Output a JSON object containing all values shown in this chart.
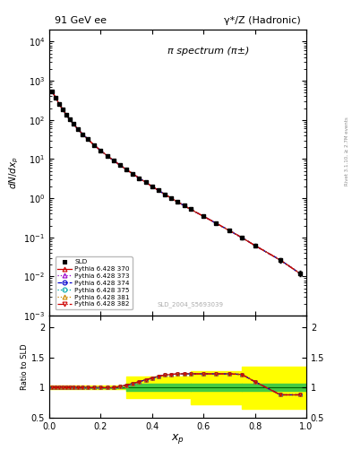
{
  "title_left": "91 GeV ee",
  "title_right": "γ*/Z (Hadronic)",
  "plot_title": "π spectrum (π±)",
  "watermark": "SLD_2004_S5693039",
  "right_label": "Rivet 3.1.10, ≥ 2.7M events",
  "xlabel": "x_{p}",
  "ylabel_top": "dN/dx_{p}",
  "ylabel_bottom": "Ratio to SLD",
  "xp": [
    0.012,
    0.025,
    0.038,
    0.052,
    0.065,
    0.08,
    0.095,
    0.11,
    0.13,
    0.15,
    0.175,
    0.2,
    0.225,
    0.25,
    0.275,
    0.3,
    0.325,
    0.35,
    0.375,
    0.4,
    0.425,
    0.45,
    0.475,
    0.5,
    0.525,
    0.55,
    0.6,
    0.65,
    0.7,
    0.75,
    0.8,
    0.9,
    0.975
  ],
  "sld_y": [
    520,
    370,
    255,
    186,
    138,
    103,
    78,
    59,
    43,
    32,
    22.5,
    16.5,
    12.2,
    9.2,
    7.0,
    5.4,
    4.2,
    3.25,
    2.55,
    2.0,
    1.58,
    1.25,
    1.0,
    0.8,
    0.645,
    0.52,
    0.345,
    0.228,
    0.15,
    0.098,
    0.062,
    0.026,
    0.012
  ],
  "sld_yerr": [
    18,
    13,
    9,
    7,
    5.5,
    4,
    3,
    2.5,
    1.8,
    1.3,
    0.9,
    0.65,
    0.48,
    0.36,
    0.28,
    0.21,
    0.17,
    0.13,
    0.1,
    0.08,
    0.065,
    0.052,
    0.042,
    0.034,
    0.028,
    0.023,
    0.016,
    0.012,
    0.009,
    0.007,
    0.005,
    0.003,
    0.002
  ],
  "ratio_xp": [
    0.012,
    0.025,
    0.038,
    0.052,
    0.065,
    0.08,
    0.095,
    0.11,
    0.13,
    0.15,
    0.175,
    0.2,
    0.225,
    0.25,
    0.275,
    0.3,
    0.325,
    0.35,
    0.375,
    0.4,
    0.425,
    0.45,
    0.475,
    0.5,
    0.525,
    0.55,
    0.6,
    0.65,
    0.7,
    0.75,
    0.8,
    0.9,
    0.975
  ],
  "ratio_vals": [
    1.0,
    1.0,
    1.0,
    1.0,
    1.0,
    1.0,
    1.0,
    1.0,
    1.0,
    1.0,
    1.0,
    1.0,
    1.0,
    1.0,
    1.02,
    1.04,
    1.07,
    1.1,
    1.13,
    1.16,
    1.19,
    1.21,
    1.22,
    1.23,
    1.23,
    1.23,
    1.23,
    1.23,
    1.23,
    1.22,
    1.1,
    0.88,
    0.88
  ],
  "band_xedges": [
    0.0,
    0.3,
    0.55,
    0.75,
    1.01
  ],
  "yellow_lo": [
    0.97,
    0.82,
    0.72,
    0.65
  ],
  "yellow_hi": [
    1.03,
    1.18,
    1.28,
    1.35
  ],
  "green_lo": [
    0.99,
    0.94,
    0.94,
    0.94
  ],
  "green_hi": [
    1.01,
    1.06,
    1.06,
    1.06
  ],
  "mc_colors": [
    "#cc0000",
    "#9900cc",
    "#0000cc",
    "#00aaaa",
    "#cc8800",
    "#cc0000"
  ],
  "mc_lines": [
    "solid",
    "dotted",
    "dashed",
    "dotted",
    "dotted",
    "dashdot"
  ],
  "mc_markers": [
    "^",
    "^",
    "o",
    "o",
    "^",
    "v"
  ],
  "legend_labels": [
    "SLD",
    "Pythia 6.428 370",
    "Pythia 6.428 373",
    "Pythia 6.428 374",
    "Pythia 6.428 375",
    "Pythia 6.428 381",
    "Pythia 6.428 382"
  ],
  "legend_colors": [
    "#000000",
    "#cc0000",
    "#9900cc",
    "#0000cc",
    "#00aaaa",
    "#cc8800",
    "#cc0000"
  ],
  "legend_markers": [
    "s",
    "^",
    "^",
    "o",
    "o",
    "^",
    "v"
  ],
  "legend_lines": [
    "none",
    "solid",
    "dotted",
    "dashed",
    "dotted",
    "dotted",
    "dashdot"
  ]
}
